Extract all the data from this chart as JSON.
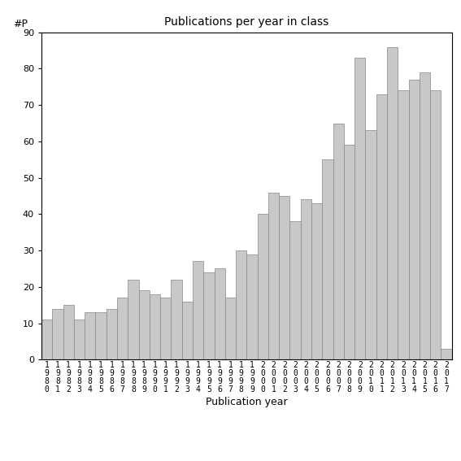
{
  "title": "Publications per year in class",
  "xlabel": "Publication year",
  "ylabel": "#P",
  "ylim": [
    0,
    90
  ],
  "yticks": [
    0,
    10,
    20,
    30,
    40,
    50,
    60,
    70,
    80,
    90
  ],
  "bar_color": "#c8c8c8",
  "bar_edgecolor": "#888888",
  "years": [
    "1980",
    "1981",
    "1982",
    "1983",
    "1984",
    "1985",
    "1986",
    "1987",
    "1988",
    "1989",
    "1990",
    "1991",
    "1992",
    "1993",
    "1994",
    "1995",
    "1996",
    "1997",
    "1998",
    "1999",
    "2000",
    "2001",
    "2002",
    "2003",
    "2004",
    "2005",
    "2006",
    "2007",
    "2008",
    "2009",
    "2010",
    "2011",
    "2012",
    "2013",
    "2014",
    "2015",
    "2016",
    "2017"
  ],
  "values": [
    11,
    14,
    15,
    11,
    13,
    13,
    14,
    17,
    22,
    19,
    18,
    17,
    22,
    16,
    27,
    24,
    25,
    17,
    30,
    29,
    40,
    46,
    45,
    38,
    44,
    43,
    55,
    65,
    59,
    83,
    63,
    73,
    86,
    74,
    77,
    79,
    74,
    3
  ],
  "background_color": "#ffffff",
  "figsize": [
    5.67,
    5.67
  ],
  "dpi": 100,
  "title_fontsize": 10,
  "axis_label_fontsize": 9,
  "tick_fontsize": 8
}
